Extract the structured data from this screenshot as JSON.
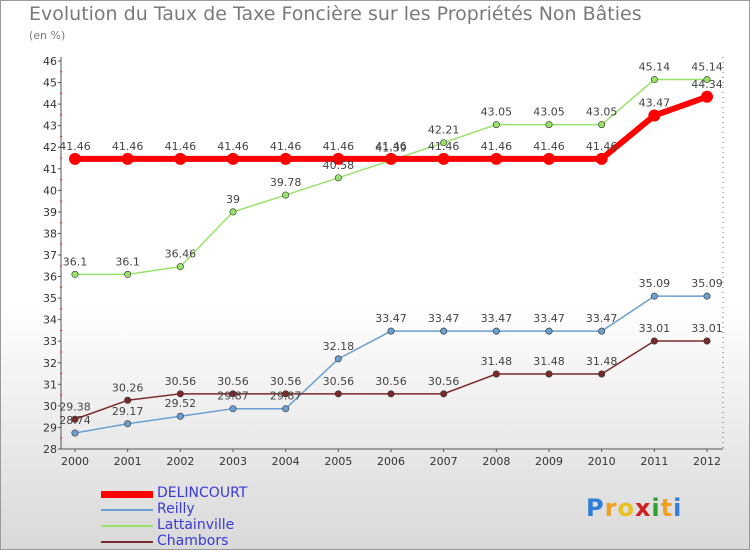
{
  "chart_data": {
    "type": "line",
    "title": "Evolution du Taux de Taxe Foncière sur les Propriétés Non Bâties",
    "ylabel": "(en %)",
    "xlabel": "",
    "ylim": [
      28,
      46
    ],
    "yticks": [
      28,
      29,
      30,
      31,
      32,
      33,
      34,
      35,
      36,
      37,
      38,
      39,
      40,
      41,
      42,
      43,
      44,
      45,
      46
    ],
    "categories": [
      "2000",
      "2001",
      "2002",
      "2003",
      "2004",
      "2005",
      "2006",
      "2007",
      "2008",
      "2009",
      "2010",
      "2011",
      "2012"
    ],
    "series": [
      {
        "name": "DELINCOURT",
        "color": "#ff0000",
        "values": [
          41.46,
          41.46,
          41.46,
          41.46,
          41.46,
          41.46,
          41.46,
          41.46,
          41.46,
          41.46,
          41.46,
          43.47,
          44.34
        ],
        "labels": [
          "41.46",
          "41.46",
          "41.46",
          "41.46",
          "41.46",
          "41.46",
          "41.46",
          "41.46",
          "41.46",
          "41.46",
          "41.46",
          "43.47",
          "44.34"
        ]
      },
      {
        "name": "Reilly",
        "color": "#6a9fd0",
        "values": [
          28.74,
          29.17,
          29.52,
          29.87,
          29.87,
          32.18,
          33.47,
          33.47,
          33.47,
          33.47,
          33.47,
          35.09,
          35.09
        ],
        "labels": [
          "28.74",
          "29.17",
          "29.52",
          "29.87",
          "29.87",
          "32.18",
          "33.47",
          "33.47",
          "33.47",
          "33.47",
          "33.47",
          "35.09",
          "35.09"
        ]
      },
      {
        "name": "Lattainville",
        "color": "#99e26a",
        "values": [
          36.1,
          36.1,
          36.46,
          39,
          39.78,
          40.58,
          41.39,
          42.21,
          43.05,
          43.05,
          43.05,
          45.14,
          45.14
        ],
        "labels": [
          "36.1",
          "36.1",
          "36.46",
          "39",
          "39.78",
          "40.58",
          "41.39",
          "42.21",
          "43.05",
          "43.05",
          "43.05",
          "45.14",
          "45.14"
        ]
      },
      {
        "name": "Chambors",
        "color": "#7a2a2a",
        "values": [
          29.38,
          30.26,
          30.56,
          30.56,
          30.56,
          30.56,
          30.56,
          30.56,
          31.48,
          31.48,
          31.48,
          33.01,
          33.01
        ],
        "labels": [
          "29.38",
          "30.26",
          "30.56",
          "30.56",
          "30.56",
          "30.56",
          "30.56",
          "30.56",
          "31.48",
          "31.48",
          "31.48",
          "33.01",
          "33.01"
        ]
      }
    ],
    "legend_position": "bottom-left"
  },
  "logo": {
    "letters": [
      "P",
      "r",
      "o",
      "x",
      "i",
      "t",
      "i"
    ],
    "colors": [
      "#2f7fd8",
      "#f0a020",
      "#e8c020",
      "#d02020",
      "#2f9f2f",
      "#f0a020",
      "#2f7fd8"
    ]
  }
}
